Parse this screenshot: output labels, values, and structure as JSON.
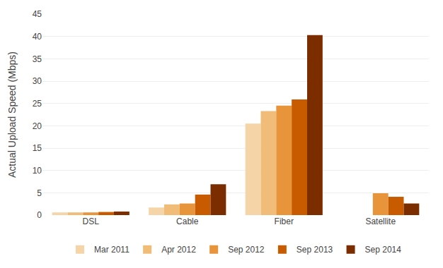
{
  "chart_data": {
    "type": "bar",
    "ylabel": "Actual Upload Speed (Mbps)",
    "categories": [
      "DSL",
      "Cable",
      "Fiber",
      "Satellite"
    ],
    "series": [
      {
        "name": "Mar 2011",
        "color": "#F5D5A8",
        "values": [
          0.6,
          1.7,
          20.5,
          null
        ]
      },
      {
        "name": "Apr 2012",
        "color": "#F0BC78",
        "values": [
          0.6,
          2.4,
          23.3,
          null
        ]
      },
      {
        "name": "Sep 2012",
        "color": "#E8943A",
        "values": [
          0.6,
          2.6,
          24.5,
          4.9
        ]
      },
      {
        "name": "Sep 2013",
        "color": "#C85A00",
        "values": [
          0.7,
          4.6,
          25.9,
          4.1
        ]
      },
      {
        "name": "Sep 2014",
        "color": "#7B2D00",
        "values": [
          0.8,
          6.9,
          40.3,
          2.6
        ]
      }
    ],
    "ylim": [
      0,
      45
    ],
    "yticks": [
      0,
      5,
      10,
      15,
      20,
      25,
      30,
      35,
      40,
      45
    ],
    "grid": true,
    "legend": "bottom"
  }
}
